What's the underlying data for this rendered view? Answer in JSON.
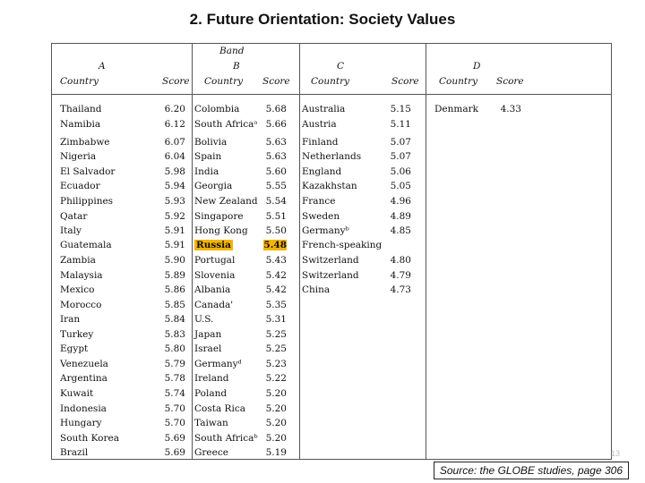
{
  "title": "2. Future Orientation: Society Values",
  "headers": {
    "band": "Band",
    "band_a": "A",
    "band_b": "B",
    "band_c": "C",
    "band_d": "D",
    "country": "Country",
    "score": "Score"
  },
  "band_a": [
    {
      "country": "Thailand",
      "score": "6.20"
    },
    {
      "country": "Namibia",
      "score": "6.12"
    },
    {
      "country": "Zimbabwe",
      "score": "6.07"
    },
    {
      "country": "Nigeria",
      "score": "6.04"
    },
    {
      "country": "El Salvador",
      "score": "5.98"
    },
    {
      "country": "Ecuador",
      "score": "5.94"
    },
    {
      "country": "Philippines",
      "score": "5.93"
    },
    {
      "country": "Qatar",
      "score": "5.92"
    },
    {
      "country": "Italy",
      "score": "5.91"
    },
    {
      "country": "Guatemala",
      "score": "5.91"
    },
    {
      "country": "Zambia",
      "score": "5.90"
    },
    {
      "country": "Malaysia",
      "score": "5.89"
    },
    {
      "country": "Mexico",
      "score": "5.86"
    },
    {
      "country": "Morocco",
      "score": "5.85"
    },
    {
      "country": "Iran",
      "score": "5.84"
    },
    {
      "country": "Turkey",
      "score": "5.83"
    },
    {
      "country": "Egypt",
      "score": "5.80"
    },
    {
      "country": "Venezuela",
      "score": "5.79"
    },
    {
      "country": "Argentina",
      "score": "5.78"
    },
    {
      "country": "Kuwait",
      "score": "5.74"
    },
    {
      "country": "Indonesia",
      "score": "5.70"
    },
    {
      "country": "Hungary",
      "score": "5.70"
    },
    {
      "country": "South Korea",
      "score": "5.69"
    },
    {
      "country": "Brazil",
      "score": "5.69"
    }
  ],
  "band_b": [
    {
      "country": "Colombia",
      "score": "5.68"
    },
    {
      "country": "South Africaᵃ",
      "score": "5.66"
    },
    {
      "country": "Bolivia",
      "score": "5.63"
    },
    {
      "country": "Spain",
      "score": "5.63"
    },
    {
      "country": "India",
      "score": "5.60"
    },
    {
      "country": "Georgia",
      "score": "5.55"
    },
    {
      "country": "New Zealand",
      "score": "5.54"
    },
    {
      "country": "Singapore",
      "score": "5.51"
    },
    {
      "country": "Hong Kong",
      "score": "5.50"
    },
    {
      "country": "Russia",
      "score": "5.48",
      "highlight": true
    },
    {
      "country": "Portugal",
      "score": "5.43"
    },
    {
      "country": "Slovenia",
      "score": "5.42"
    },
    {
      "country": "Albania",
      "score": "5.42"
    },
    {
      "country": "Canada'",
      "score": "5.35"
    },
    {
      "country": "U.S.",
      "score": "5.31"
    },
    {
      "country": "Japan",
      "score": "5.25"
    },
    {
      "country": "Israel",
      "score": "5.25"
    },
    {
      "country": "Germanyᵈ",
      "score": "5.23"
    },
    {
      "country": "Ireland",
      "score": "5.22"
    },
    {
      "country": "Poland",
      "score": "5.20"
    },
    {
      "country": "Costa Rica",
      "score": "5.20"
    },
    {
      "country": "Taiwan",
      "score": "5.20"
    },
    {
      "country": "South Africaᵇ",
      "score": "5.20"
    },
    {
      "country": "Greece",
      "score": "5.19"
    }
  ],
  "band_c": [
    {
      "country": "Australia",
      "score": "5.15"
    },
    {
      "country": "Austria",
      "score": "5.11"
    },
    {
      "country": "Finland",
      "score": "5.07"
    },
    {
      "country": "Netherlands",
      "score": "5.07"
    },
    {
      "country": "England",
      "score": "5.06"
    },
    {
      "country": "Kazakhstan",
      "score": "5.05"
    },
    {
      "country": "France",
      "score": "4.96"
    },
    {
      "country": "Sweden",
      "score": "4.89"
    },
    {
      "country": "Germanyᵇ",
      "score": "4.85"
    },
    {
      "country": "French-speaking",
      "score": ""
    },
    {
      "country": "Switzerland",
      "score": "4.80"
    },
    {
      "country": "Switzerland",
      "score": "4.79"
    },
    {
      "country": "China",
      "score": "4.73"
    }
  ],
  "band_d": [
    {
      "country": "Denmark",
      "score": "4.33"
    }
  ],
  "source": "Source: the GLOBE studies, page 306",
  "page_number": "13"
}
